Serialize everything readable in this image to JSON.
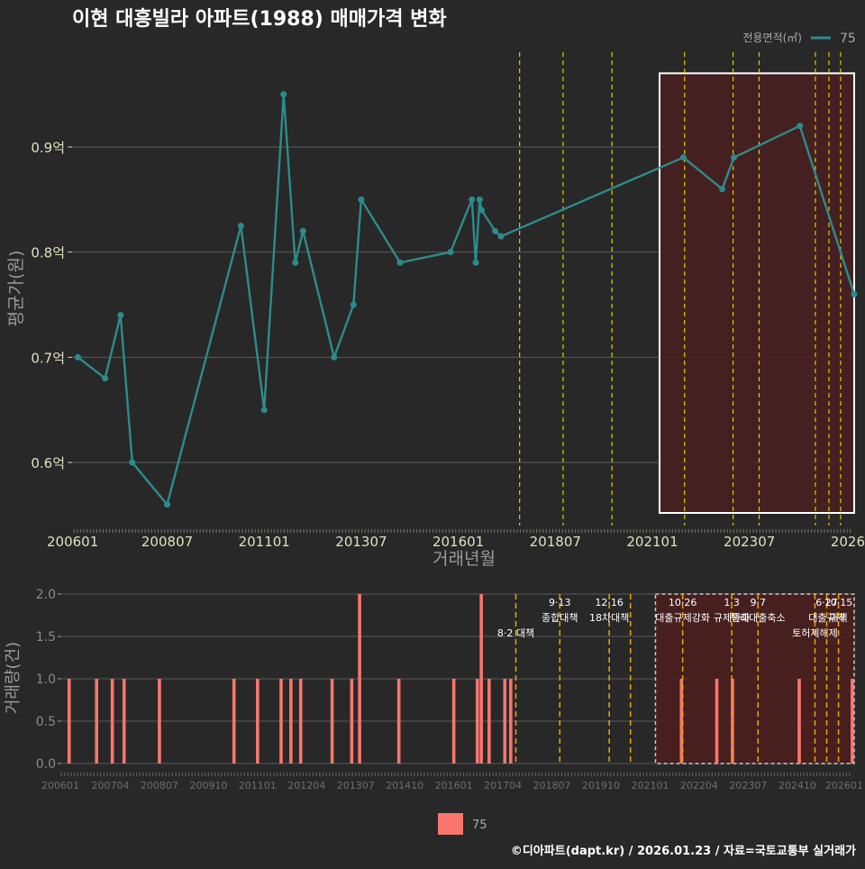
{
  "title": "이현 대흥빌라 아파트(1988) 매매가격 변화",
  "footer": "©디아파트(dapt.kr) / 2026.01.23 / 자료=국토교통부 실거래가",
  "colors": {
    "background": "#282828",
    "line": "#2e8b8b",
    "bar": "#f8766d",
    "policy_line": "#e6c800",
    "grid": "#5a5a5a",
    "highlight_fill": "#4a1e1e"
  },
  "chart_data": [
    {
      "type": "line",
      "title": "이현 대흥빌라 아파트(1988) 매매가격 변화",
      "xlabel": "거래년월",
      "ylabel": "평균가(원)",
      "ylim": [
        0.54,
        0.99
      ],
      "xlim": [
        2006.05,
        2026.2
      ],
      "ytick_values": [
        0.6,
        0.7,
        0.8,
        0.9
      ],
      "ytick_labels": [
        "0.6억",
        "0.7억",
        "0.8억",
        "0.9억"
      ],
      "xtick_values": [
        2006.0,
        2008.5,
        2011.0,
        2013.5,
        2016.0,
        2018.5,
        2021.0,
        2023.5,
        2026.0
      ],
      "xtick_labels": [
        "200601",
        "200807",
        "201101",
        "201307",
        "201601",
        "201807",
        "202101",
        "202307",
        "2026"
      ],
      "legend_title": "전용면적(㎡)",
      "legend_label": "75",
      "highlight_range": [
        2021.0,
        2026.0
      ],
      "policy_lines": [
        2017.58,
        2018.7,
        2019.96,
        2021.83,
        2023.08,
        2023.75,
        2025.2,
        2025.55,
        2025.85
      ],
      "series": [
        {
          "name": "75",
          "x": [
            2006.2,
            2006.9,
            2007.3,
            2007.6,
            2008.5,
            2010.4,
            2011.0,
            2011.5,
            2011.8,
            2012.0,
            2012.8,
            2013.3,
            2013.5,
            2014.5,
            2015.8,
            2016.35,
            2016.45,
            2016.55,
            2016.6,
            2016.95,
            2017.1,
            2021.8,
            2022.8,
            2023.1,
            2024.8,
            2026.2
          ],
          "values": [
            0.7,
            0.68,
            0.74,
            0.6,
            0.56,
            0.825,
            0.65,
            0.95,
            0.79,
            0.82,
            0.7,
            0.75,
            0.85,
            0.79,
            0.8,
            0.85,
            0.79,
            0.85,
            0.84,
            0.82,
            0.815,
            0.89,
            0.86,
            0.89,
            0.92,
            0.76
          ]
        }
      ]
    },
    {
      "type": "bar",
      "xlabel": "",
      "ylabel": "거래량(건)",
      "ylim": [
        0,
        2
      ],
      "xlim": [
        2006.0,
        2026.2
      ],
      "ytick_values": [
        0,
        0.5,
        1,
        1.5,
        2
      ],
      "ytick_labels": [
        "0.0",
        "0.5",
        "1.0",
        "1.5",
        "2.0"
      ],
      "xtick_values": [
        2006.0,
        2007.25,
        2008.5,
        2009.75,
        2011.0,
        2012.25,
        2013.5,
        2014.75,
        2016.0,
        2017.25,
        2018.5,
        2019.75,
        2021.0,
        2022.25,
        2023.5,
        2024.75,
        2026.0
      ],
      "xtick_labels": [
        "200601",
        "200704",
        "200807",
        "200910",
        "201101",
        "201204",
        "201307",
        "201410",
        "201601",
        "201704",
        "201807",
        "201910",
        "202101",
        "202204",
        "202307",
        "202410",
        "202601"
      ],
      "legend_label": "75",
      "highlight_range": [
        2021.0,
        2026.2
      ],
      "x": [
        2006.2,
        2006.9,
        2007.3,
        2007.6,
        2008.5,
        2010.4,
        2011.0,
        2011.6,
        2011.85,
        2012.1,
        2012.9,
        2013.4,
        2013.6,
        2014.6,
        2016.0,
        2016.6,
        2016.7,
        2016.9,
        2017.3,
        2017.45,
        2021.8,
        2022.7,
        2023.1,
        2024.8,
        2026.15
      ],
      "values": [
        1,
        1,
        1,
        1,
        1,
        1,
        1,
        1,
        1,
        1,
        1,
        1,
        2,
        1,
        1,
        1,
        2,
        1,
        1,
        1,
        1,
        1,
        1,
        1,
        1
      ],
      "policy_lines": [
        {
          "x": 2017.58,
          "label": "8·2 대책"
        },
        {
          "x": 2018.7,
          "label": "9·13\n종합대책"
        },
        {
          "x": 2019.96,
          "label": "12·16\n18차대책"
        },
        {
          "x": 2020.5,
          "label": ""
        },
        {
          "x": 2021.83,
          "label": "10·26\n대출규제강화"
        },
        {
          "x": 2023.08,
          "label": "1·3\n규제완화"
        },
        {
          "x": 2023.75,
          "label": "9·7\n특례대출축소"
        },
        {
          "x": 2025.2,
          "label": "토허제해제"
        },
        {
          "x": 2025.5,
          "label": "6·27\n대출규제"
        },
        {
          "x": 2025.8,
          "label": "10·15\n대책"
        }
      ]
    }
  ]
}
